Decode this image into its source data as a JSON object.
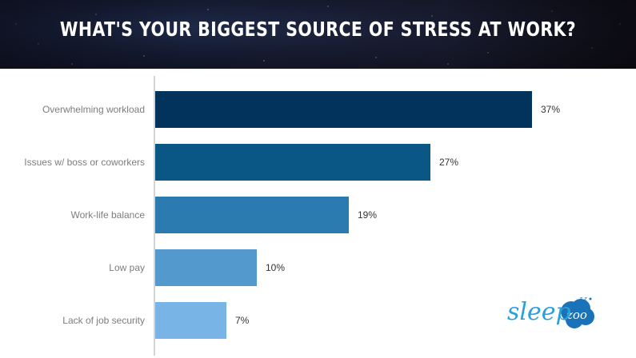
{
  "header": {
    "title": "What's your biggest source of stress at work?"
  },
  "chart_data": {
    "type": "bar",
    "orientation": "horizontal",
    "title": "What's your biggest source of stress at work?",
    "xlabel": "",
    "ylabel": "",
    "categories": [
      "Overwhelming workload",
      "Issues w/ boss or coworkers",
      "Work-life balance",
      "Low pay",
      "Lack of job security"
    ],
    "values": [
      37,
      27,
      19,
      10,
      7
    ],
    "value_labels": [
      "37%",
      "27%",
      "19%",
      "10%",
      "7%"
    ],
    "colors": [
      "#02335c",
      "#0a5786",
      "#2c7bb0",
      "#5499cd",
      "#78b5e6"
    ],
    "xlim": [
      0,
      40
    ],
    "grid": false,
    "legend": "none"
  },
  "branding": {
    "logo_text": "sleep",
    "logo_bubble_text": "zoo",
    "logo_color": "#2a9fdc",
    "bubble_color": "#1a73b8"
  }
}
